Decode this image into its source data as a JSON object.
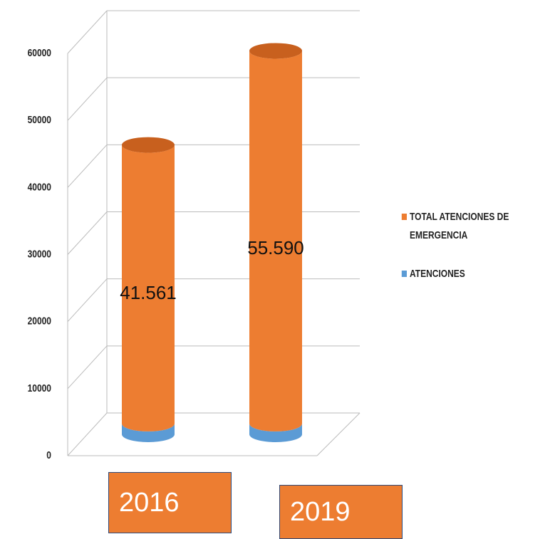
{
  "chart_data": {
    "type": "bar3d_stacked",
    "categories": [
      "2016",
      "2019"
    ],
    "series": [
      {
        "name": "ATENCIONES",
        "color": "#5b9bd5",
        "values": [
          1600,
          1600
        ]
      },
      {
        "name": "TOTAL ATENCIONES DE EMERGENCIA",
        "color": "#ed7d31",
        "values": [
          41561,
          55590
        ],
        "value_labels": [
          "41.561",
          "55.590"
        ]
      }
    ],
    "ylim": [
      0,
      60000
    ],
    "yticks": [
      0,
      10000,
      20000,
      30000,
      40000,
      50000,
      60000
    ],
    "grid": true
  }
}
